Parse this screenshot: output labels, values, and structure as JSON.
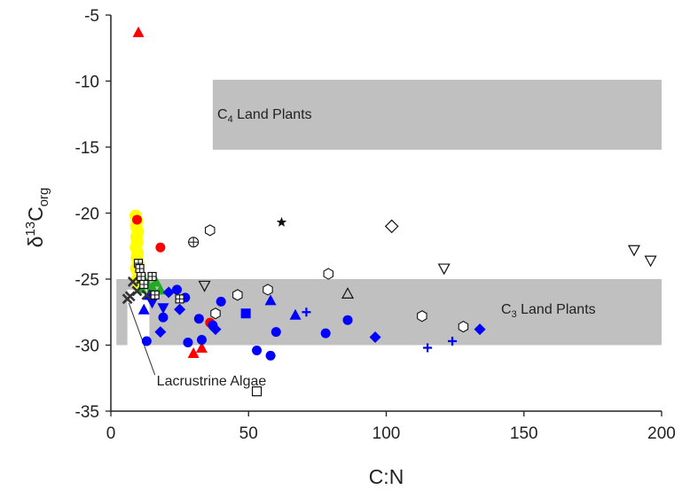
{
  "chart_data": {
    "type": "scatter",
    "title": "",
    "xlabel": "C:N",
    "ylabel": {
      "base": "δ",
      "sup": "13",
      "main": "C",
      "sub": "org"
    },
    "xlim": [
      0,
      200
    ],
    "ylim": [
      -35,
      -5
    ],
    "xticks": [
      0,
      50,
      100,
      150,
      200
    ],
    "yticks": [
      -35,
      -30,
      -25,
      -20,
      -15,
      -10,
      -5
    ],
    "grid": false,
    "legend": "none",
    "regions": [
      {
        "name": "C4 Land Plants",
        "label": {
          "pre": "C",
          "sub": "4",
          "post": " Land Plants"
        },
        "x": [
          37,
          200
        ],
        "y": [
          -15.2,
          -9.9
        ],
        "color": "#c0c0c0"
      },
      {
        "name": "C3 Land Plants",
        "label": {
          "pre": "C",
          "sub": "3",
          "post": " Land Plants"
        },
        "x": [
          2,
          200
        ],
        "y": [
          -30,
          -25
        ],
        "color": "#c0c0c0"
      },
      {
        "name": "Lacrustrine Algae",
        "label": {
          "pre": "Lacrustrine Algae",
          "sub": "",
          "post": ""
        },
        "x": [
          6,
          14
        ],
        "y": [
          -30,
          -25.8
        ],
        "color": "#ffffff"
      }
    ],
    "annotation": {
      "text": "Lacrustrine Algae",
      "arrow_from": [
        16,
        -32.8
      ],
      "arrow_to": [
        6.5,
        -26.8
      ]
    },
    "series": [
      {
        "marker": "yellow-circle",
        "color": "#ffff00",
        "points": [
          [
            9,
            -20.2
          ],
          [
            9.5,
            -20.6
          ],
          [
            9.2,
            -21.0
          ],
          [
            9.8,
            -21.4
          ],
          [
            9.3,
            -21.8
          ],
          [
            9.6,
            -22.2
          ],
          [
            9.1,
            -22.6
          ],
          [
            9.7,
            -23.0
          ],
          [
            9.4,
            -23.4
          ],
          [
            9.9,
            -23.8
          ],
          [
            9.2,
            -24.2
          ],
          [
            10.1,
            -24.6
          ],
          [
            9.6,
            -25.0
          ],
          [
            10.2,
            -25.3
          ]
        ]
      },
      {
        "marker": "red-triangle",
        "color": "#ff0000",
        "points": [
          [
            10,
            -6.3
          ],
          [
            30,
            -30.6
          ],
          [
            33,
            -30.2
          ]
        ]
      },
      {
        "marker": "red-circle",
        "color": "#ff0000",
        "points": [
          [
            9.5,
            -20.5
          ],
          [
            18,
            -22.6
          ],
          [
            36,
            -28.3
          ]
        ]
      },
      {
        "marker": "green-triangle",
        "color": "#22aa22",
        "points": [
          [
            12,
            -25.0
          ],
          [
            13.5,
            -25.4
          ],
          [
            15,
            -25.6
          ],
          [
            16.5,
            -25.2
          ],
          [
            18,
            -25.8
          ],
          [
            11,
            -25.7
          ]
        ]
      },
      {
        "marker": "blue-circle",
        "color": "#0000ff",
        "points": [
          [
            13,
            -29.7
          ],
          [
            19,
            -27.9
          ],
          [
            24,
            -25.8
          ],
          [
            27,
            -26.4
          ],
          [
            28,
            -29.8
          ],
          [
            32,
            -28.0
          ],
          [
            33,
            -29.6
          ],
          [
            37,
            -28.5
          ],
          [
            40,
            -26.7
          ],
          [
            53,
            -30.4
          ],
          [
            58,
            -30.8
          ],
          [
            60,
            -29.0
          ],
          [
            78,
            -29.1
          ],
          [
            86,
            -28.1
          ]
        ]
      },
      {
        "marker": "blue-diamond",
        "color": "#0000ff",
        "points": [
          [
            18,
            -29.0
          ],
          [
            21,
            -26.0
          ],
          [
            25,
            -27.3
          ],
          [
            38,
            -28.8
          ],
          [
            96,
            -29.4
          ],
          [
            134,
            -28.8
          ]
        ]
      },
      {
        "marker": "blue-triangle",
        "color": "#0000ff",
        "points": [
          [
            12,
            -27.3
          ],
          [
            14,
            -26.2
          ],
          [
            58,
            -26.6
          ],
          [
            67,
            -27.7
          ]
        ]
      },
      {
        "marker": "blue-invtriangle",
        "color": "#0000ff",
        "points": [
          [
            19,
            -27.2
          ],
          [
            15,
            -26.8
          ]
        ]
      },
      {
        "marker": "blue-square",
        "color": "#0000ff",
        "points": [
          [
            49,
            -27.6
          ]
        ]
      },
      {
        "marker": "blue-plus",
        "color": "#0000ff",
        "points": [
          [
            71,
            -27.5
          ],
          [
            115,
            -30.2
          ],
          [
            124,
            -29.7
          ]
        ]
      },
      {
        "marker": "black-x",
        "color": "#333333",
        "points": [
          [
            6,
            -26.5
          ],
          [
            7,
            -26.3
          ],
          [
            8,
            -25.2
          ],
          [
            9.5,
            -25.9
          ],
          [
            11,
            -25.0
          ],
          [
            13,
            -26.2
          ]
        ]
      },
      {
        "marker": "boxed-plus",
        "color": "#111111",
        "points": [
          [
            10,
            -23.8
          ],
          [
            10.5,
            -24.2
          ],
          [
            11,
            -24.8
          ],
          [
            12,
            -25.4
          ],
          [
            15,
            -24.8
          ],
          [
            16,
            -26.2
          ],
          [
            25,
            -26.5
          ]
        ]
      },
      {
        "marker": "open-hexagon",
        "color": "#111111",
        "points": [
          [
            36,
            -21.3
          ],
          [
            46,
            -26.2
          ],
          [
            57,
            -25.8
          ],
          [
            79,
            -24.6
          ],
          [
            113,
            -27.8
          ],
          [
            128,
            -28.6
          ],
          [
            38,
            -27.6
          ]
        ]
      },
      {
        "marker": "open-invtriangle",
        "color": "#111111",
        "points": [
          [
            34,
            -25.5
          ],
          [
            121,
            -24.2
          ],
          [
            190,
            -22.8
          ],
          [
            196,
            -23.6
          ]
        ]
      },
      {
        "marker": "open-triangle",
        "color": "#111111",
        "points": [
          [
            86,
            -26.1
          ]
        ]
      },
      {
        "marker": "open-diamond",
        "color": "#111111",
        "points": [
          [
            102,
            -21.0
          ]
        ]
      },
      {
        "marker": "open-circle-plus",
        "color": "#111111",
        "points": [
          [
            30,
            -22.2
          ]
        ]
      },
      {
        "marker": "star",
        "color": "#111111",
        "points": [
          [
            62,
            -20.7
          ]
        ]
      },
      {
        "marker": "open-square",
        "color": "#111111",
        "points": [
          [
            53,
            -33.5
          ]
        ]
      }
    ]
  }
}
